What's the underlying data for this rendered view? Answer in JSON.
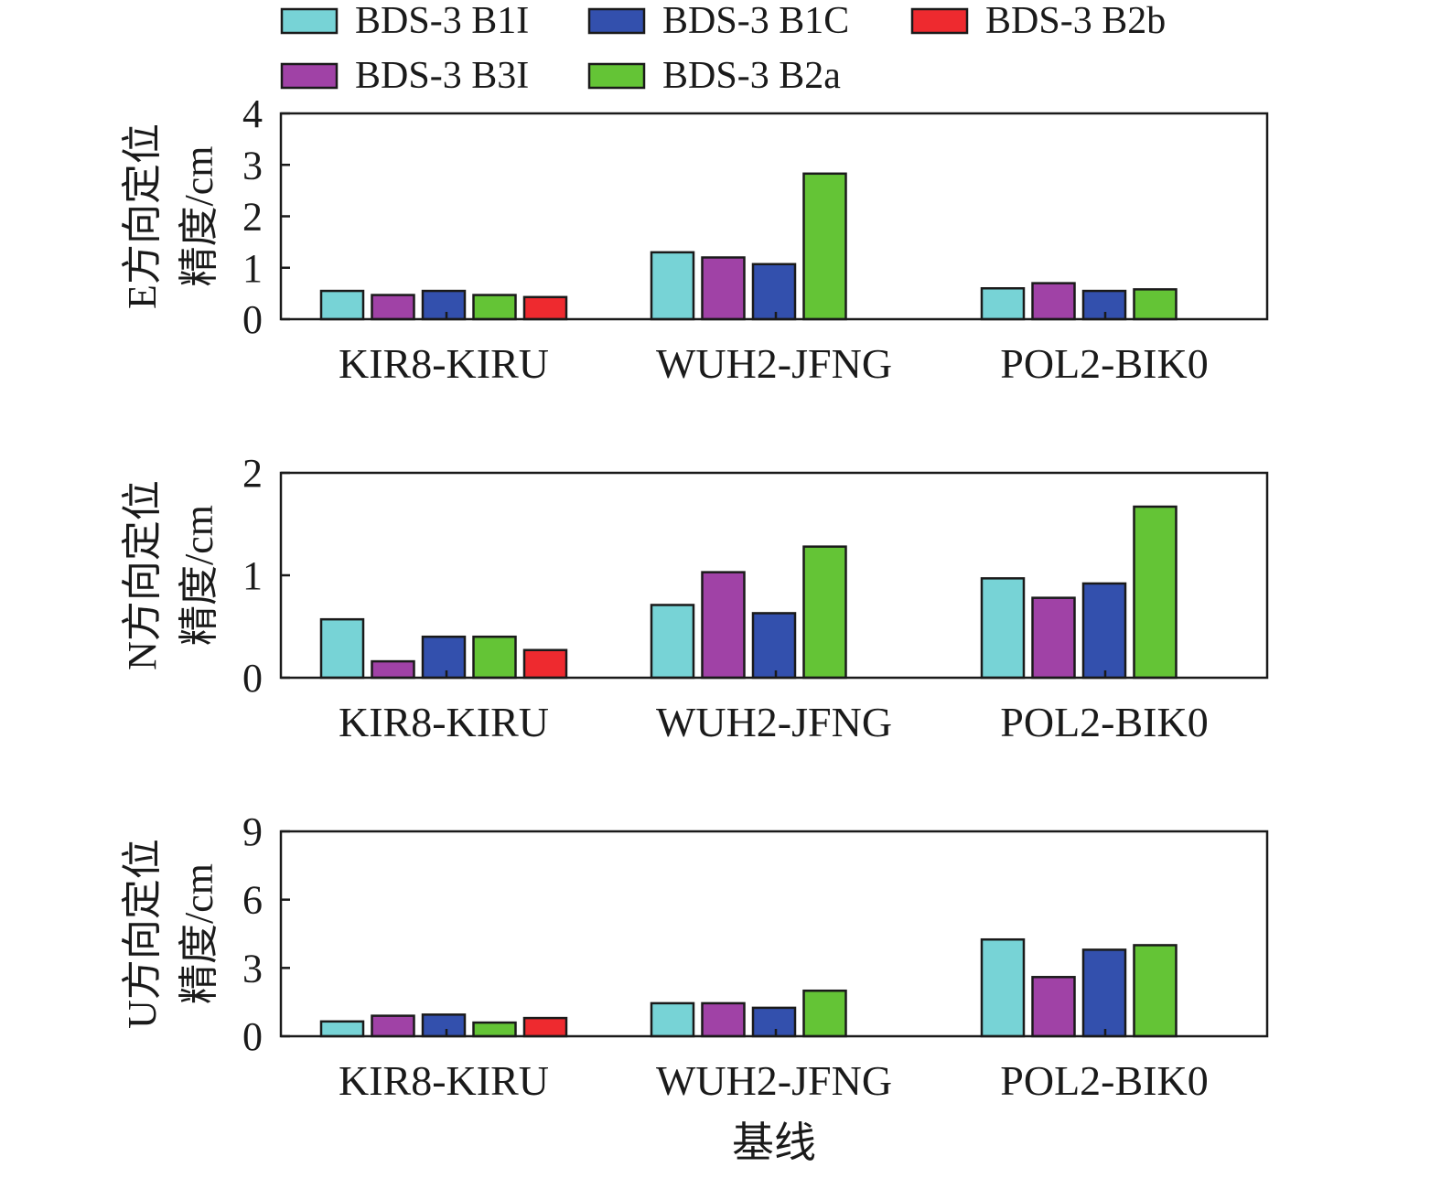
{
  "chart_data": [
    {
      "type": "bar",
      "panel": "E",
      "ylabel_line1": "E方向定位",
      "ylabel_line2": "精度/cm",
      "ylim": [
        0,
        4
      ],
      "yticks": [
        "0",
        "1",
        "2",
        "3",
        "4"
      ],
      "categories": [
        "KIR8-KIRU",
        "WUH2-JFNG",
        "POL2-BIK0"
      ],
      "series": [
        {
          "name": "BDS-3 B1I",
          "values": [
            0.55,
            1.3,
            0.6
          ]
        },
        {
          "name": "BDS-3 B3I",
          "values": [
            0.47,
            1.2,
            0.7
          ]
        },
        {
          "name": "BDS-3 B1C",
          "values": [
            0.55,
            1.07,
            0.55
          ]
        },
        {
          "name": "BDS-3 B2a",
          "values": [
            0.47,
            2.83,
            0.58
          ]
        },
        {
          "name": "BDS-3 B2b",
          "values": [
            0.43,
            null,
            null
          ]
        }
      ]
    },
    {
      "type": "bar",
      "panel": "N",
      "ylabel_line1": "N方向定位",
      "ylabel_line2": "精度/cm",
      "ylim": [
        0,
        2
      ],
      "yticks": [
        "0",
        "1",
        "2"
      ],
      "categories": [
        "KIR8-KIRU",
        "WUH2-JFNG",
        "POL2-BIK0"
      ],
      "series": [
        {
          "name": "BDS-3 B1I",
          "values": [
            0.57,
            0.71,
            0.97
          ]
        },
        {
          "name": "BDS-3 B3I",
          "values": [
            0.16,
            1.03,
            0.78
          ]
        },
        {
          "name": "BDS-3 B1C",
          "values": [
            0.4,
            0.63,
            0.92
          ]
        },
        {
          "name": "BDS-3 B2a",
          "values": [
            0.4,
            1.28,
            1.67
          ]
        },
        {
          "name": "BDS-3 B2b",
          "values": [
            0.27,
            null,
            null
          ]
        }
      ]
    },
    {
      "type": "bar",
      "panel": "U",
      "ylabel_line1": "U方向定位",
      "ylabel_line2": "精度/cm",
      "xlabel": "基线",
      "ylim": [
        0,
        9
      ],
      "yticks": [
        "0",
        "3",
        "6",
        "9"
      ],
      "categories": [
        "KIR8-KIRU",
        "WUH2-JFNG",
        "POL2-BIK0"
      ],
      "series": [
        {
          "name": "BDS-3 B1I",
          "values": [
            0.65,
            1.45,
            4.25
          ]
        },
        {
          "name": "BDS-3 B3I",
          "values": [
            0.9,
            1.45,
            2.6
          ]
        },
        {
          "name": "BDS-3 B1C",
          "values": [
            0.95,
            1.25,
            3.8
          ]
        },
        {
          "name": "BDS-3 B2a",
          "values": [
            0.6,
            2.0,
            4.0
          ]
        },
        {
          "name": "BDS-3 B2b",
          "values": [
            0.8,
            null,
            null
          ]
        }
      ]
    }
  ],
  "legend": [
    {
      "name": "BDS-3 B1I",
      "color": "#77d3d6"
    },
    {
      "name": "BDS-3 B1C",
      "color": "#3350ad"
    },
    {
      "name": "BDS-3 B2b",
      "color": "#ee2a2f"
    },
    {
      "name": "BDS-3 B3I",
      "color": "#a042a6"
    },
    {
      "name": "BDS-3 B2a",
      "color": "#64c436"
    }
  ]
}
